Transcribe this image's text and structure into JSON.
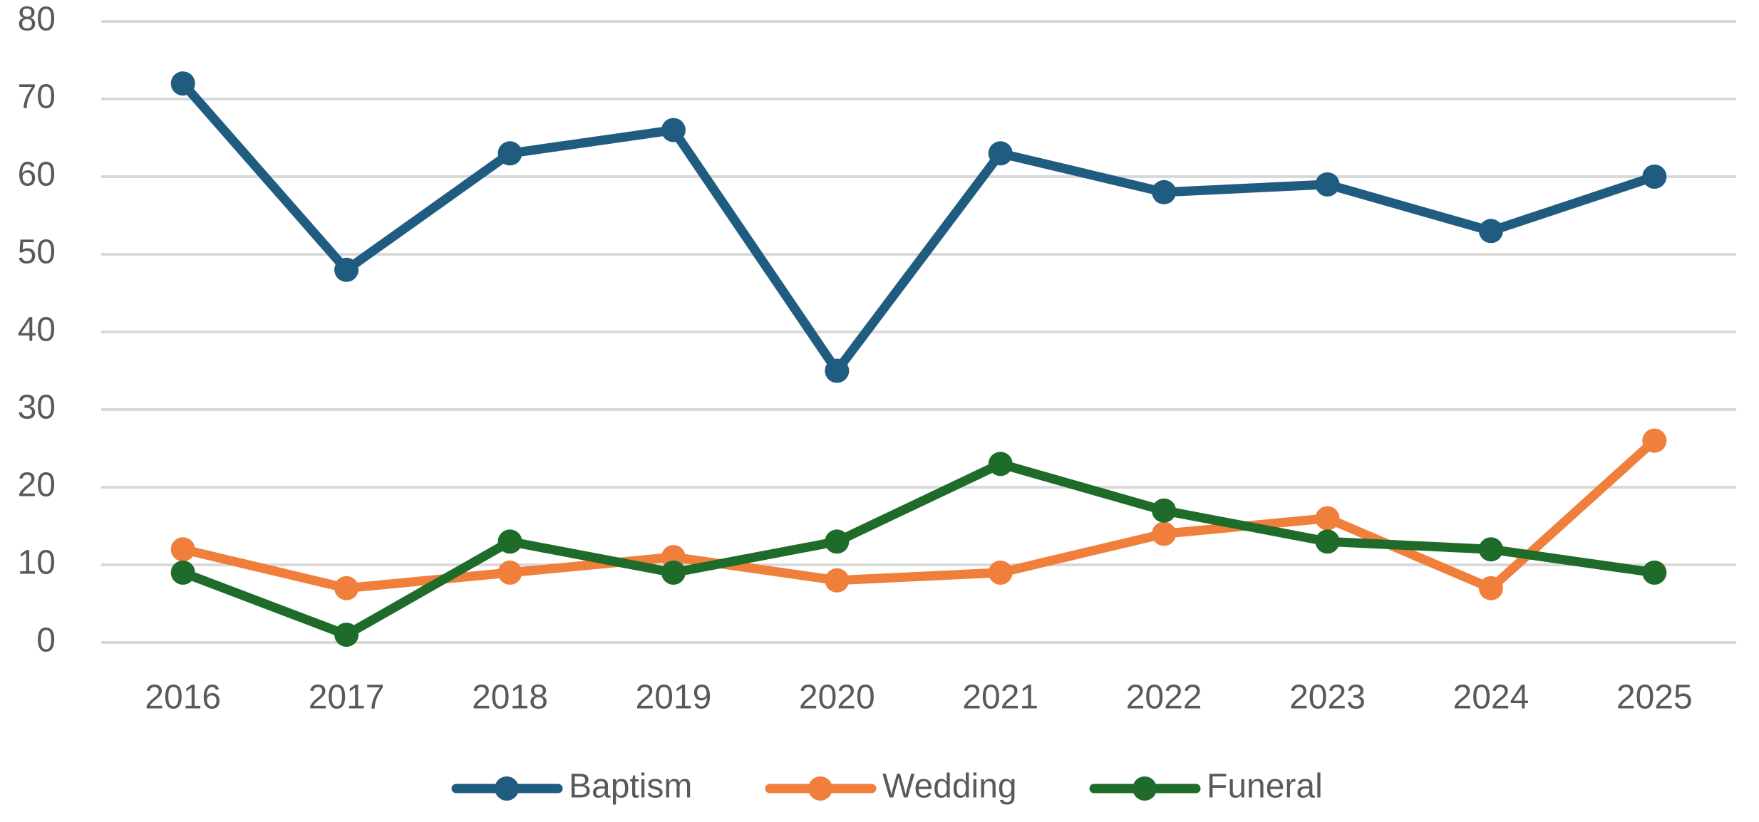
{
  "chart_data": {
    "type": "line",
    "categories": [
      "2016",
      "2017",
      "2018",
      "2019",
      "2020",
      "2021",
      "2022",
      "2023",
      "2024",
      "2025"
    ],
    "series": [
      {
        "name": "Baptism",
        "color": "#1f5c80",
        "values": [
          72,
          48,
          63,
          66,
          35,
          63,
          58,
          59,
          53,
          60
        ]
      },
      {
        "name": "Wedding",
        "color": "#f07f3c",
        "values": [
          12,
          7,
          9,
          11,
          8,
          9,
          14,
          16,
          7,
          26
        ]
      },
      {
        "name": "Funeral",
        "color": "#1e6b2a",
        "values": [
          9,
          1,
          13,
          9,
          13,
          23,
          17,
          13,
          12,
          9
        ]
      }
    ],
    "ylim": [
      0,
      80
    ],
    "yticks": [
      0,
      10,
      20,
      30,
      40,
      50,
      60,
      70,
      80
    ],
    "grid": true,
    "legend": "bottom"
  }
}
